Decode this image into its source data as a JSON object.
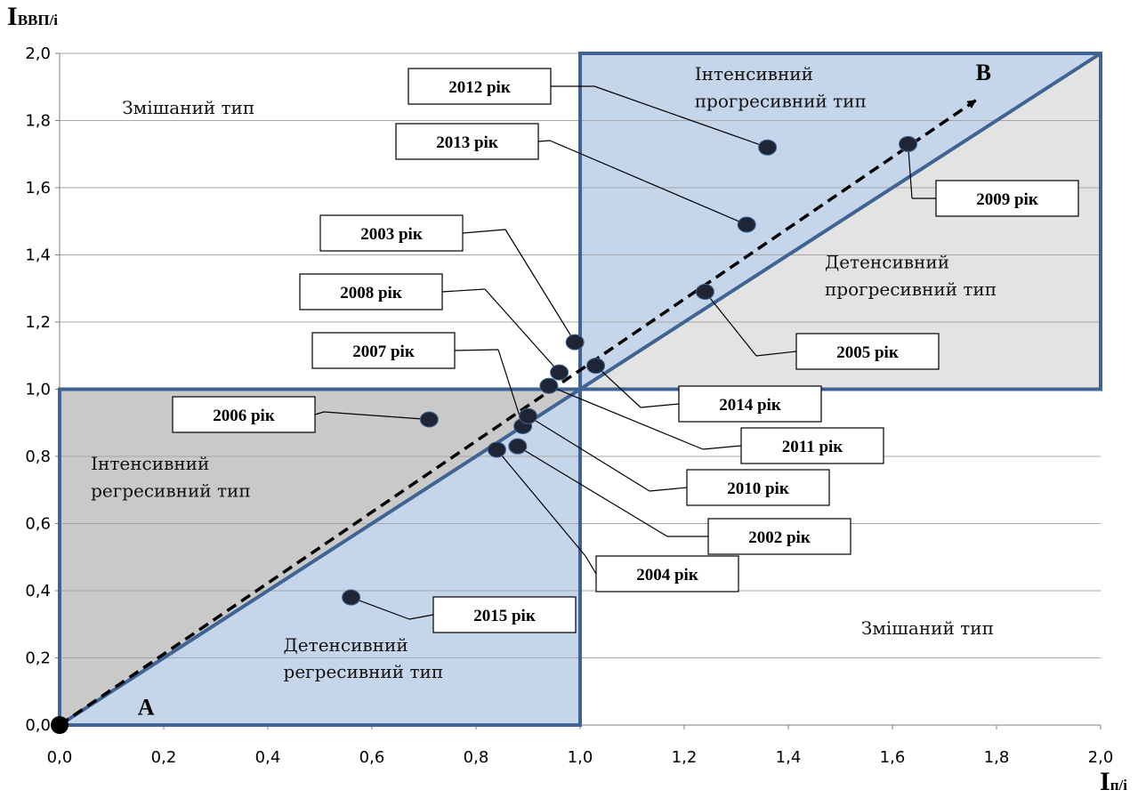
{
  "chart_data": {
    "type": "scatter",
    "ylabel": {
      "main": "I",
      "sub": "ВВП/і"
    },
    "xlabel": {
      "main": "I",
      "sub": "п/і"
    },
    "xlim": [
      0,
      2
    ],
    "ylim": [
      0,
      2
    ],
    "x_ticks": [
      "0,0",
      "0,2",
      "0,4",
      "0,6",
      "0,8",
      "1,0",
      "1,2",
      "1,4",
      "1,6",
      "1,8",
      "2,0"
    ],
    "y_ticks": [
      "0,0",
      "0,2",
      "0,4",
      "0,6",
      "0,8",
      "1,0",
      "1,2",
      "1,4",
      "1,6",
      "1,8",
      "2,0"
    ],
    "grid": "horizontal",
    "points": [
      {
        "label": "2002 рік",
        "x": 0.88,
        "y": 0.83
      },
      {
        "label": "2003 рік",
        "x": 0.99,
        "y": 1.14
      },
      {
        "label": "2004 рік",
        "x": 0.84,
        "y": 0.82
      },
      {
        "label": "2005 рік",
        "x": 1.24,
        "y": 1.29
      },
      {
        "label": "2006 рік",
        "x": 0.71,
        "y": 0.91
      },
      {
        "label": "2007 рік",
        "x": 0.89,
        "y": 0.89
      },
      {
        "label": "2008 рік",
        "x": 0.96,
        "y": 1.05
      },
      {
        "label": "2009 рік",
        "x": 1.63,
        "y": 1.73
      },
      {
        "label": "2010 рік",
        "x": 0.9,
        "y": 0.92
      },
      {
        "label": "2011 рік",
        "x": 0.94,
        "y": 1.01
      },
      {
        "label": "2012 рік",
        "x": 1.36,
        "y": 1.72
      },
      {
        "label": "2013 рік",
        "x": 1.32,
        "y": 1.49
      },
      {
        "label": "2014 рік",
        "x": 1.03,
        "y": 1.07
      },
      {
        "label": "2015 рік",
        "x": 0.56,
        "y": 0.38
      }
    ],
    "origin_point": {
      "x": 0,
      "y": 0
    },
    "point_labels": {
      "A": "A",
      "B": "B"
    },
    "regions": {
      "mixed_top": "Змішаний тип",
      "mixed_bottom": "Змішаний тип",
      "intensive_progressive": [
        "Інтенсивний",
        "прогресивний тип"
      ],
      "detensive_progressive": [
        "Детенсивний",
        "прогресивний тип"
      ],
      "intensive_regressive": [
        "Інтенсивний",
        "регресивний тип"
      ],
      "detensive_regressive": [
        "Детенсивний",
        "регресивний тип"
      ]
    },
    "colors": {
      "box_border": "#3f6494",
      "blue_fill": "#c5d5ea",
      "light_gray_fill": "#e3e3e3",
      "dark_gray_fill": "#c9c9c9",
      "point": "#1f2535",
      "gridline": "#a6a6a6"
    }
  }
}
